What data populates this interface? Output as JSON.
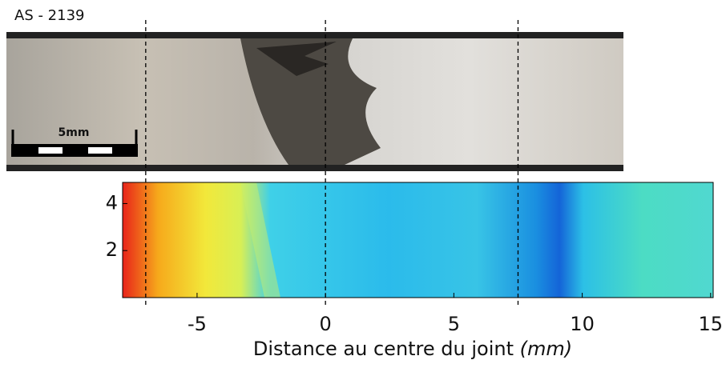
{
  "chart_data": {
    "type": "heatmap",
    "title": "AS - 2139",
    "scale_bar_label": "5mm",
    "xlabel": "Distance au centre du joint",
    "xlabel_unit": "(mm)",
    "xlim": [
      -7.9,
      15.1
    ],
    "xticks": [
      -5,
      0,
      5,
      10,
      15
    ],
    "ylim": [
      0,
      4.9
    ],
    "yticks": [
      2,
      4
    ],
    "reference_lines": [
      -7,
      0,
      7.5
    ]
  }
}
